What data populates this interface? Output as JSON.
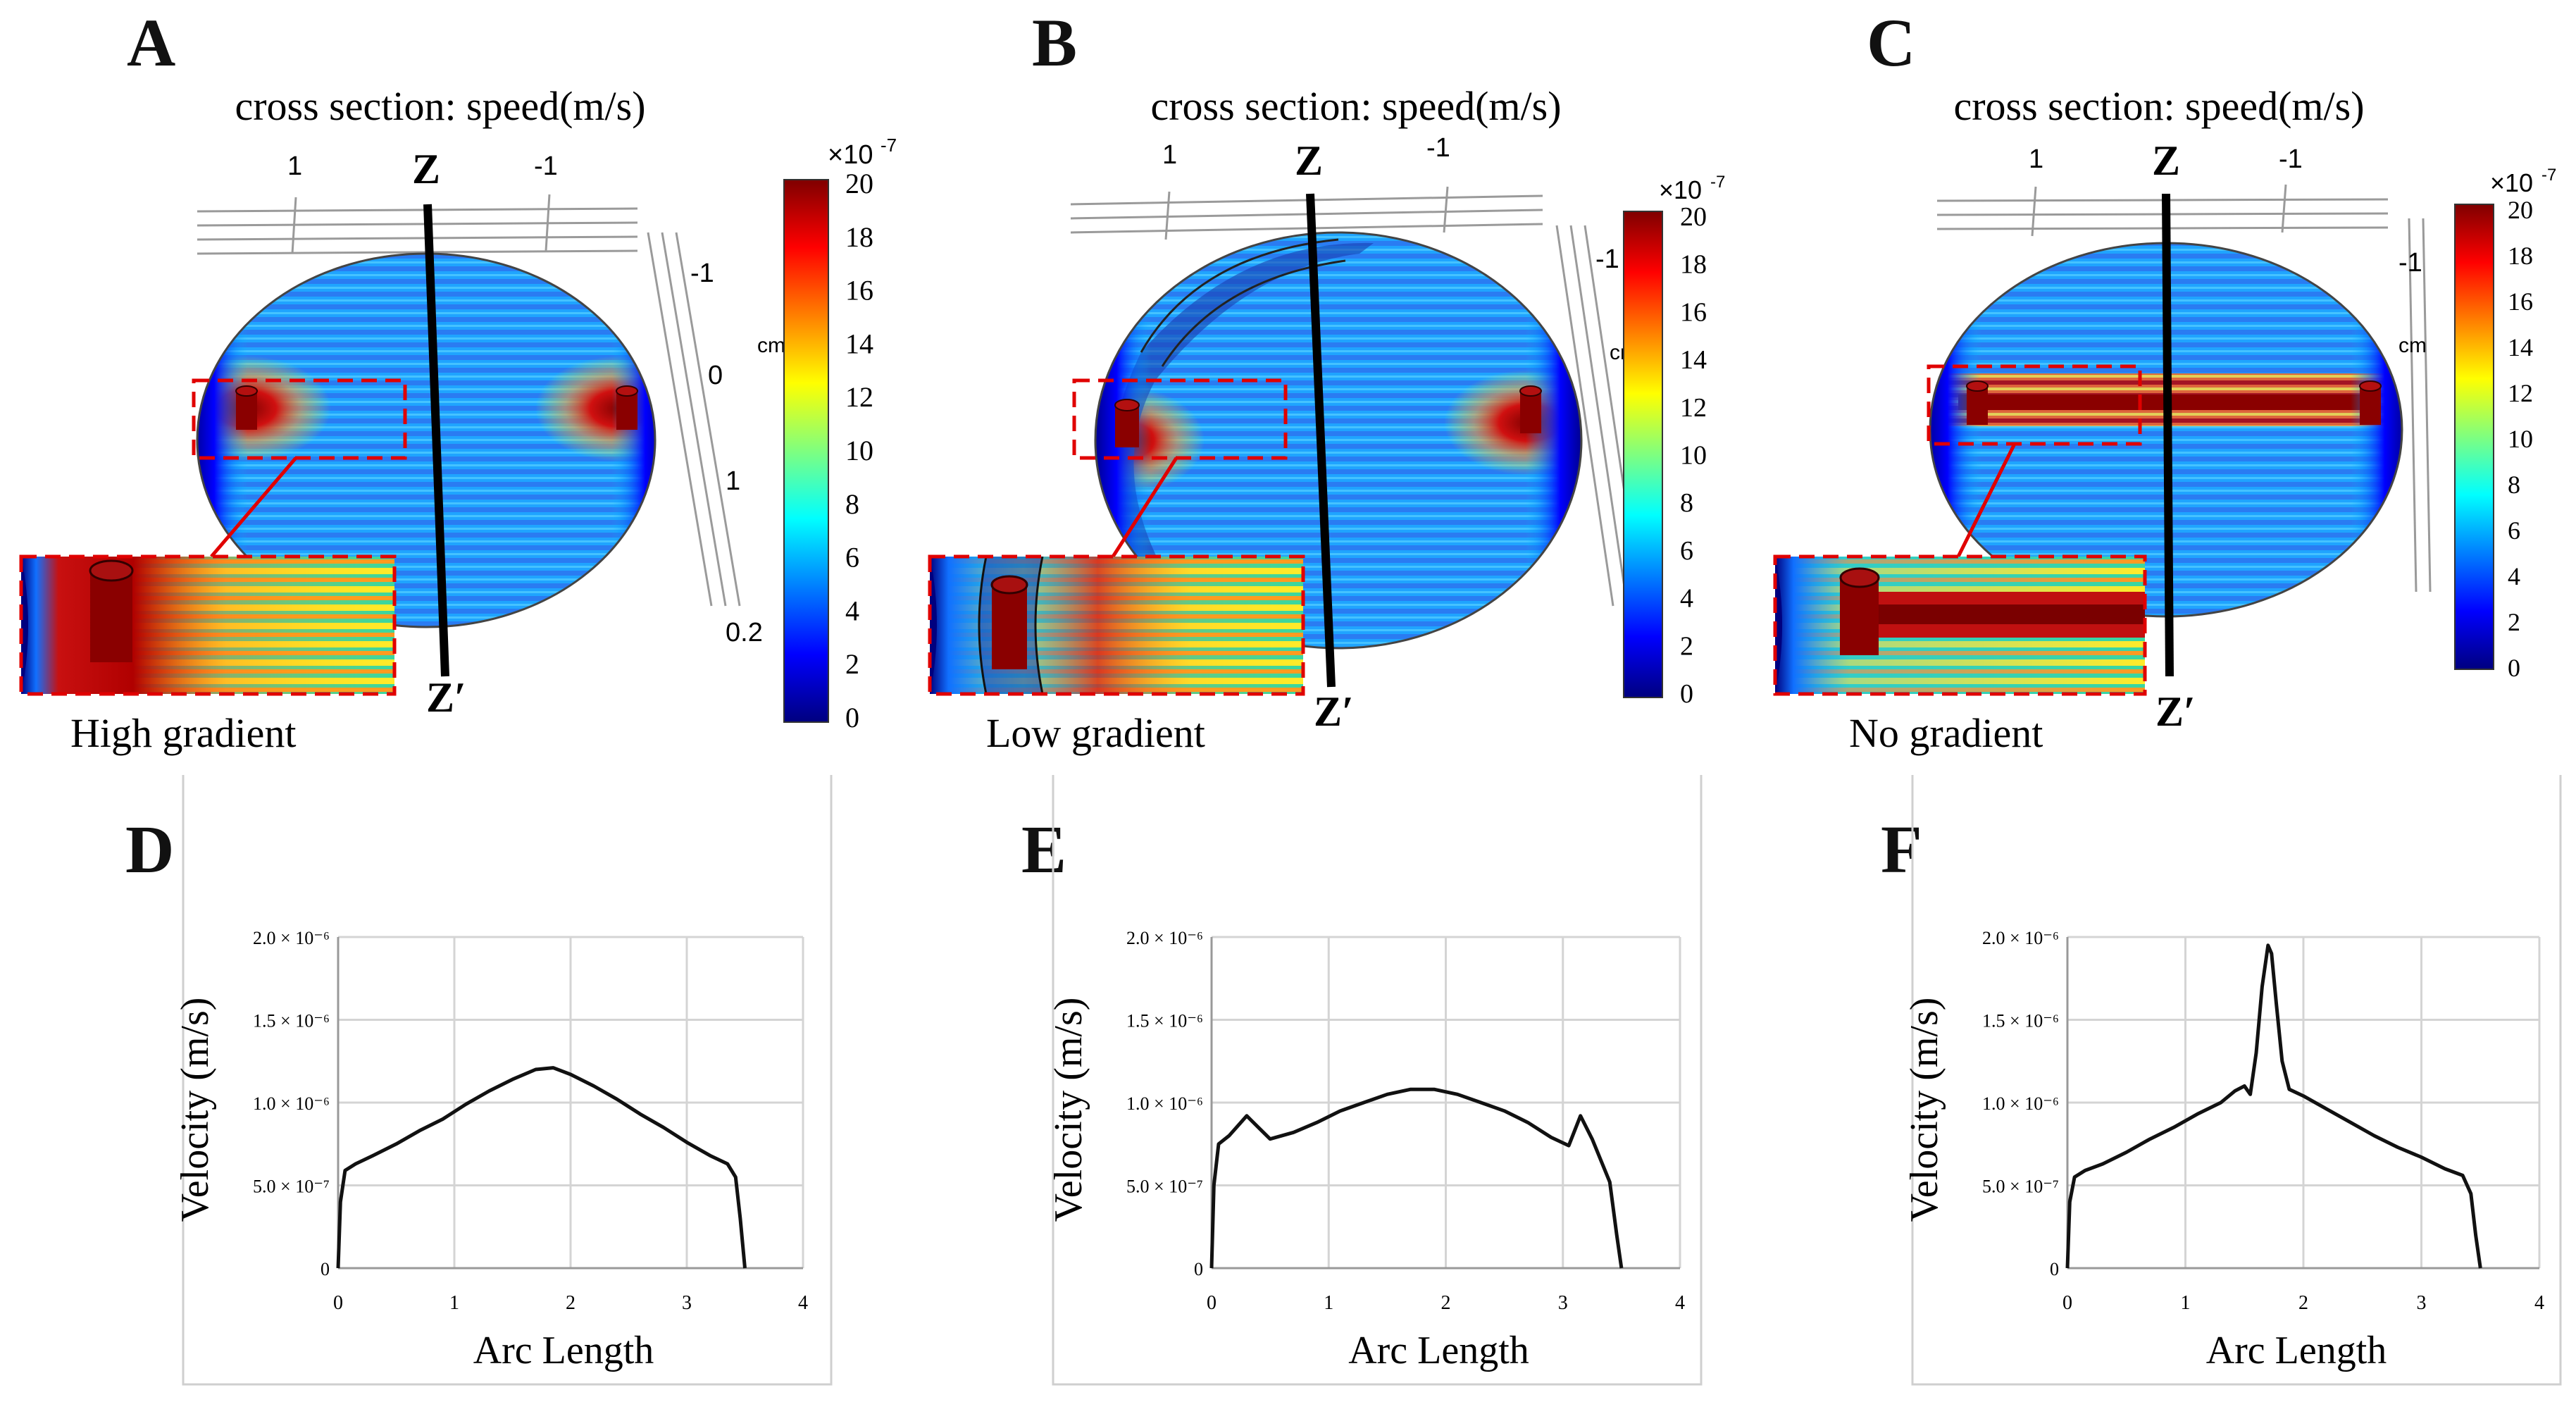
{
  "panels": [
    {
      "letter": "A",
      "title": "cross section: speed(m/s)",
      "caption": "High gradient"
    },
    {
      "letter": "B",
      "title": "cross section: speed(m/s)",
      "caption": "Low gradient"
    },
    {
      "letter": "C",
      "title": "cross section: speed(m/s)",
      "caption": "No gradient"
    }
  ],
  "axis_markers": {
    "z": "Z",
    "z_prime": "Z′"
  },
  "top_ticks": {
    "left": "1",
    "right": "-1"
  },
  "side_ticks_a": [
    "-1",
    "0",
    "1",
    "0.2"
  ],
  "side_tick_b": "-1",
  "side_tick_c": "-1",
  "unit_cm": "cm",
  "colorbar": {
    "multiplier": "×10",
    "exponent": "-7",
    "ticks": [
      "20",
      "18",
      "16",
      "14",
      "12",
      "10",
      "8",
      "6",
      "4",
      "2",
      "0"
    ],
    "colors": [
      "#00007f",
      "#0000ff",
      "#007fff",
      "#00ffff",
      "#7fff7f",
      "#ffff00",
      "#ff7f00",
      "#ff0000",
      "#7f0000"
    ]
  },
  "chart_data": [
    {
      "type": "line",
      "panel": "D",
      "xlabel": "Arc Length",
      "ylabel": "Velocity (m/s)",
      "xlim": [
        0,
        4
      ],
      "ylim": [
        0,
        2e-06
      ],
      "x_ticks": [
        "0",
        "1",
        "2",
        "3",
        "4"
      ],
      "y_ticks": [
        "0",
        "5.0 × 10⁻⁷",
        "1.0 × 10⁻⁶",
        "1.5 × 10⁻⁶",
        "2.0 × 10⁻⁶"
      ],
      "x": [
        0,
        0.02,
        0.06,
        0.15,
        0.3,
        0.5,
        0.7,
        0.9,
        1.1,
        1.3,
        1.5,
        1.7,
        1.85,
        2.0,
        2.2,
        2.4,
        2.6,
        2.8,
        3.0,
        3.2,
        3.35,
        3.42,
        3.46,
        3.5
      ],
      "y": [
        0,
        4e-07,
        5.9e-07,
        6.3e-07,
        6.8e-07,
        7.5e-07,
        8.3e-07,
        9e-07,
        9.9e-07,
        1.07e-06,
        1.14e-06,
        1.2e-06,
        1.21e-06,
        1.17e-06,
        1.1e-06,
        1.02e-06,
        9.3e-07,
        8.5e-07,
        7.6e-07,
        6.8e-07,
        6.3e-07,
        5.5e-07,
        3e-07,
        0
      ]
    },
    {
      "type": "line",
      "panel": "E",
      "xlabel": "Arc Length",
      "ylabel": "Velocity (m/s)",
      "xlim": [
        0,
        4
      ],
      "ylim": [
        0,
        2e-06
      ],
      "x_ticks": [
        "0",
        "1",
        "2",
        "3",
        "4"
      ],
      "y_ticks": [
        "0",
        "5.0 × 10⁻⁷",
        "1.0 × 10⁻⁶",
        "1.5 × 10⁻⁶",
        "2.0 × 10⁻⁶"
      ],
      "x": [
        0,
        0.02,
        0.06,
        0.15,
        0.25,
        0.3,
        0.4,
        0.5,
        0.7,
        0.9,
        1.1,
        1.3,
        1.5,
        1.7,
        1.9,
        2.1,
        2.3,
        2.5,
        2.7,
        2.9,
        3.05,
        3.15,
        3.25,
        3.4,
        3.46,
        3.5
      ],
      "y": [
        0,
        5e-07,
        7.5e-07,
        8e-07,
        8.8e-07,
        9.2e-07,
        8.5e-07,
        7.8e-07,
        8.2e-07,
        8.8e-07,
        9.5e-07,
        1e-06,
        1.05e-06,
        1.08e-06,
        1.08e-06,
        1.05e-06,
        1e-06,
        9.5e-07,
        8.8e-07,
        7.9e-07,
        7.4e-07,
        9.2e-07,
        7.8e-07,
        5.2e-07,
        2e-07,
        0
      ]
    },
    {
      "type": "line",
      "panel": "F",
      "xlabel": "Arc Length",
      "ylabel": "Velocity (m/s)",
      "xlim": [
        0,
        4
      ],
      "ylim": [
        0,
        2e-06
      ],
      "x_ticks": [
        "0",
        "1",
        "2",
        "3",
        "4"
      ],
      "y_ticks": [
        "0",
        "5.0 × 10⁻⁷",
        "1.0 × 10⁻⁶",
        "1.5 × 10⁻⁶",
        "2.0 × 10⁻⁶"
      ],
      "x": [
        0,
        0.02,
        0.06,
        0.15,
        0.3,
        0.5,
        0.7,
        0.9,
        1.1,
        1.3,
        1.42,
        1.5,
        1.55,
        1.6,
        1.65,
        1.7,
        1.73,
        1.77,
        1.82,
        1.88,
        2.0,
        2.2,
        2.4,
        2.6,
        2.8,
        3.0,
        3.2,
        3.35,
        3.42,
        3.46,
        3.5
      ],
      "y": [
        0,
        4e-07,
        5.5e-07,
        5.9e-07,
        6.3e-07,
        7e-07,
        7.8e-07,
        8.5e-07,
        9.3e-07,
        1e-06,
        1.07e-06,
        1.1e-06,
        1.05e-06,
        1.3e-06,
        1.7e-06,
        1.95e-06,
        1.9e-06,
        1.6e-06,
        1.25e-06,
        1.08e-06,
        1.04e-06,
        9.6e-07,
        8.8e-07,
        8e-07,
        7.3e-07,
        6.7e-07,
        6e-07,
        5.6e-07,
        4.5e-07,
        2e-07,
        0
      ]
    }
  ]
}
